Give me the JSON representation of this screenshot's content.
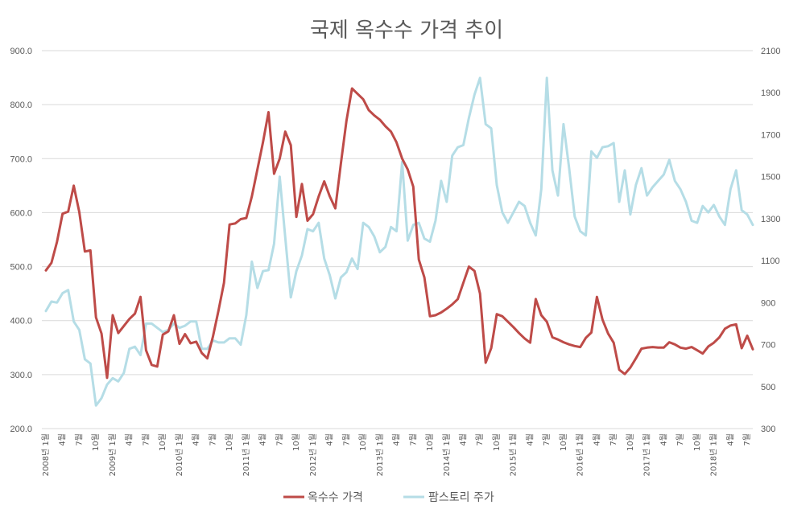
{
  "chart_data": {
    "type": "line",
    "title": "국제 옥수수 가격 추이",
    "y_left_ticks": [
      "200.0",
      "300.0",
      "400.0",
      "500.0",
      "600.0",
      "700.0",
      "800.0",
      "900.0"
    ],
    "y_left_lim": [
      200,
      900
    ],
    "y_right_ticks": [
      "300",
      "500",
      "700",
      "900",
      "1100",
      "1300",
      "1500",
      "1700",
      "1900",
      "2100"
    ],
    "y_right_lim": [
      300,
      2100
    ],
    "x_labels": [
      "2008년 1월",
      "4월",
      "7월",
      "10월",
      "2009년 1월",
      "4월",
      "7월",
      "10월",
      "2010년 1월",
      "4월",
      "7월",
      "10월",
      "2011년 1월",
      "4월",
      "7월",
      "10월",
      "2012년 1월",
      "4월",
      "7월",
      "10월",
      "2013년 1월",
      "4월",
      "7월",
      "10월",
      "2014년 1월",
      "4월",
      "7월",
      "10월",
      "2015년 1월",
      "4월",
      "7월",
      "10월",
      "2016년 1월",
      "4월",
      "7월",
      "10월",
      "2017년 1월",
      "4월",
      "7월",
      "10월",
      "2018년 1월",
      "4월",
      "7월"
    ],
    "series": [
      {
        "name": "옥수수 가격",
        "axis": "left",
        "color": "#be4b48",
        "values": [
          493,
          507,
          546,
          598,
          602,
          650,
          601,
          528,
          530,
          406,
          376,
          294,
          410,
          377,
          390,
          403,
          413,
          444,
          345,
          318,
          315,
          374,
          380,
          410,
          357,
          375,
          358,
          361,
          340,
          330,
          370,
          418,
          470,
          578,
          580,
          588,
          590,
          630,
          680,
          730,
          786,
          672,
          700,
          750,
          725,
          592,
          653,
          585,
          597,
          630,
          658,
          630,
          608,
          691,
          770,
          830,
          820,
          810,
          790,
          780,
          772,
          760,
          750,
          730,
          700,
          680,
          648,
          513,
          480,
          408,
          410,
          415,
          422,
          430,
          440,
          470,
          500,
          492,
          450,
          322,
          349,
          412,
          408,
          398,
          388,
          377,
          367,
          359,
          440,
          410,
          398,
          369,
          365,
          360,
          356,
          353,
          351,
          368,
          378,
          444,
          402,
          376,
          359,
          309,
          301,
          313,
          330,
          348,
          350,
          351,
          350,
          350,
          360,
          356,
          350,
          348,
          351,
          345,
          339,
          352,
          359,
          369,
          385,
          391,
          393,
          349,
          372,
          347
        ]
      },
      {
        "name": "팜스토리 주가",
        "axis": "right",
        "color": "#b5dde6",
        "values": [
          860,
          905,
          900,
          945,
          960,
          810,
          770,
          630,
          610,
          410,
          445,
          510,
          540,
          525,
          565,
          680,
          690,
          650,
          800,
          800,
          780,
          760,
          770,
          800,
          780,
          790,
          810,
          810,
          680,
          680,
          720,
          710,
          710,
          730,
          730,
          700,
          840,
          1095,
          970,
          1050,
          1055,
          1180,
          1500,
          1210,
          925,
          1050,
          1125,
          1250,
          1240,
          1280,
          1110,
          1030,
          920,
          1020,
          1045,
          1110,
          1060,
          1280,
          1260,
          1215,
          1140,
          1165,
          1260,
          1240,
          1570,
          1195,
          1270,
          1280,
          1205,
          1190,
          1290,
          1480,
          1380,
          1600,
          1640,
          1650,
          1780,
          1890,
          1970,
          1750,
          1730,
          1460,
          1330,
          1280,
          1330,
          1380,
          1360,
          1280,
          1220,
          1440,
          1970,
          1530,
          1410,
          1750,
          1540,
          1310,
          1240,
          1220,
          1620,
          1590,
          1640,
          1645,
          1660,
          1380,
          1530,
          1320,
          1460,
          1540,
          1410,
          1450,
          1480,
          1510,
          1580,
          1480,
          1440,
          1380,
          1290,
          1280,
          1360,
          1330,
          1365,
          1310,
          1270,
          1440,
          1530,
          1340,
          1320,
          1270
        ]
      }
    ],
    "legend_position": "bottom",
    "grid": true
  }
}
